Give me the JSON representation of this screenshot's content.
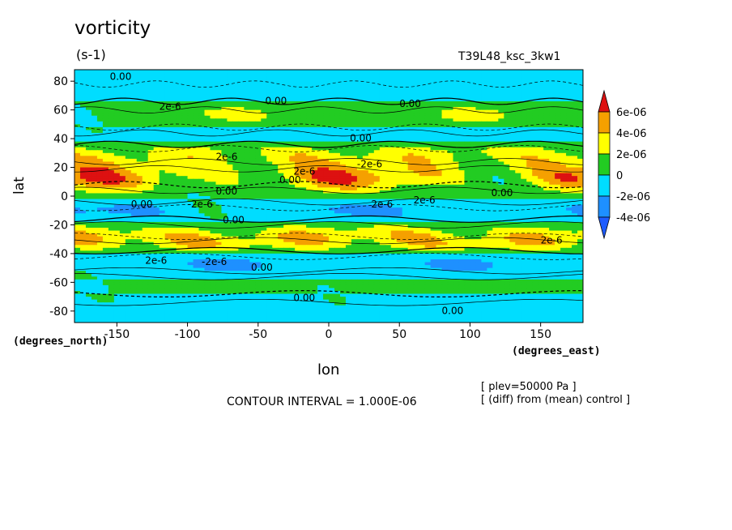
{
  "chart_data": {
    "type": "heatmap",
    "title": "vorticity",
    "units": "(s-1)",
    "dataset": "T39L48_ksc_3kw1",
    "xlabel": "lon",
    "ylabel": "lat",
    "x_units": "(degrees_east)",
    "y_units": "(degrees_north)",
    "xlim": [
      -180,
      180
    ],
    "ylim": [
      -88,
      88
    ],
    "x_ticks": [
      "-150",
      "-100",
      "-50",
      "0",
      "50",
      "100",
      "150"
    ],
    "x_tick_values": [
      -150,
      -100,
      -50,
      0,
      50,
      100,
      150
    ],
    "y_ticks": [
      "80",
      "60",
      "40",
      "20",
      "0",
      "-20",
      "-40",
      "-60",
      "-80"
    ],
    "y_tick_values": [
      80,
      60,
      40,
      20,
      0,
      -20,
      -40,
      -60,
      -80
    ],
    "contour_interval": "CONTOUR INTERVAL = 1.000E-06",
    "annotations": [
      "[ plev=50000 Pa ]",
      "[ (diff) from (mean) control ]"
    ],
    "contour_labels": [
      "0.00",
      "2e-6",
      "-2e-6"
    ],
    "colorbar": {
      "labels": [
        "6e-06",
        "4e-06",
        "2e-06",
        "0",
        "-2e-06",
        "-4e-06"
      ],
      "levels": [
        6e-06,
        4e-06,
        2e-06,
        0,
        -2e-06,
        -4e-06
      ],
      "colors": [
        "#dd1111",
        "#f5a000",
        "#ffff00",
        "#22cc22",
        "#00ddff",
        "#1e90ff",
        "#1e5cff"
      ]
    },
    "bands": [
      {
        "lat": 72,
        "value": -1e-06
      },
      {
        "lat": 55,
        "value": 3e-06
      },
      {
        "lat": 42,
        "value": -3e-06
      },
      {
        "lat": 30,
        "value": 5e-06
      },
      {
        "lat": 14,
        "value": 6e-06
      },
      {
        "lat": 2,
        "value": 1e-06
      },
      {
        "lat": -12,
        "value": -4e-06
      },
      {
        "lat": -22,
        "value": 3e-06
      },
      {
        "lat": -33,
        "value": 6e-06
      },
      {
        "lat": -45,
        "value": -4e-06
      },
      {
        "lat": -60,
        "value": 1e-06
      },
      {
        "lat": -78,
        "value": -1e-06
      }
    ]
  }
}
